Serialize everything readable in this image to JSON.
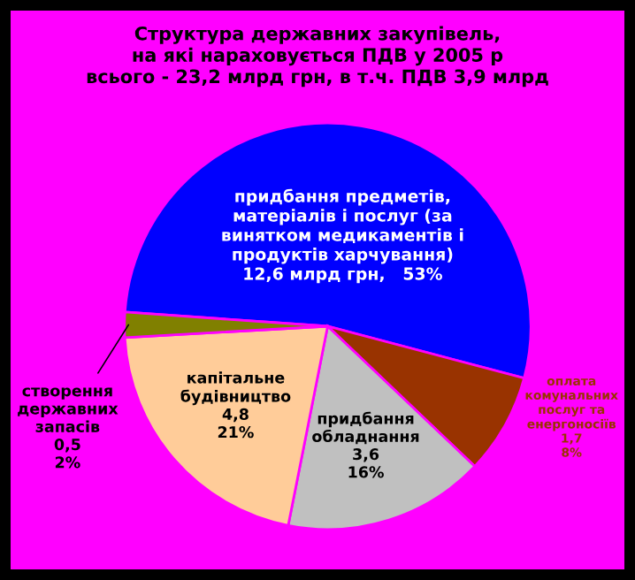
{
  "chart_data": {
    "type": "pie",
    "title": "Структура державних закупівель,\nна які нараховується ПДВ у 2005 р\nвсього - 23,2 млрд грн, в т.ч. ПДВ 3,9 млрд",
    "categories": [
      "придбання предметів, матеріалів і послуг (за винятком медикаментів і продуктів харчування)",
      "оплата комунальних послуг та енергоносіїв",
      "придбання обладнання",
      "капітальне будівництво",
      "створення державних запасів"
    ],
    "values": [
      53,
      8,
      16,
      21,
      2
    ],
    "value_labels": [
      "12,6 млрд грн,   53%",
      "1,7\n8%",
      "3,6\n16%",
      "4,8\n21%",
      "0,5\n2%"
    ],
    "colors": [
      "#0000ff",
      "#993300",
      "#c0c0c0",
      "#ffcc99",
      "#808000"
    ]
  }
}
